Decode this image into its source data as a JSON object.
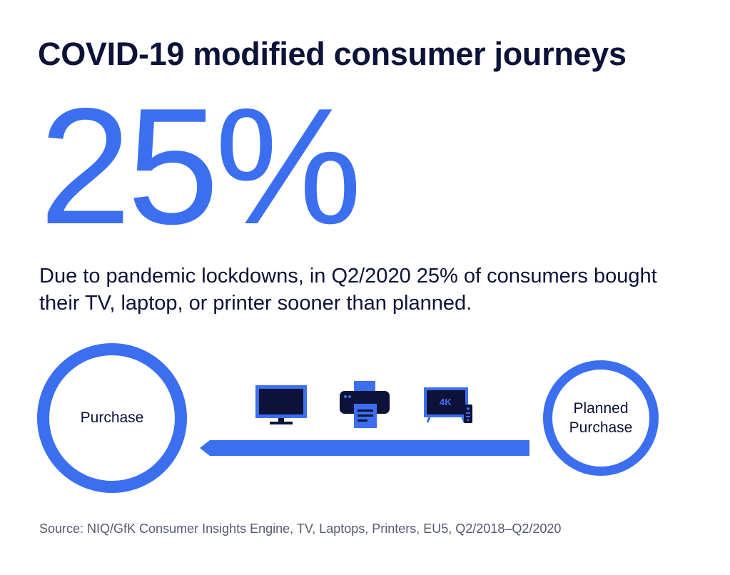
{
  "title": "COVID-19 modified consumer journeys",
  "stat": {
    "value": "25%"
  },
  "description": "Due to pandemic lockdowns, in Q2/2020 25% of consumers bought their TV, laptop, or printer sooner than planned.",
  "journey": {
    "start_label": "Purchase",
    "end_label_line1": "Planned",
    "end_label_line2": "Purchase",
    "devices": [
      "monitor-icon",
      "printer-icon",
      "tv-icon"
    ],
    "tv_badge": "4K"
  },
  "colors": {
    "accent_blue": "#3b6ff0",
    "navy": "#0d1238",
    "source_gray": "#555a6e"
  },
  "source": "Source: NIQ/GfK Consumer Insights Engine, TV, Laptops, Printers, EU5, Q2/2018–Q2/2020"
}
